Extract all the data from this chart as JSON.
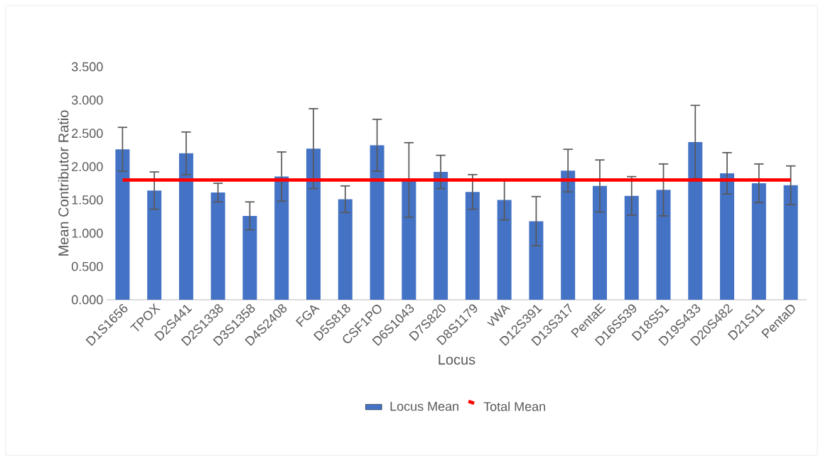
{
  "chart_data": {
    "type": "bar",
    "xlabel": "Locus",
    "ylabel": "Mean Contributor Ratio",
    "categories": [
      "D1S1656",
      "TPOX",
      "D2S441",
      "D2S1338",
      "D3S1358",
      "D4S2408",
      "FGA",
      "D5S818",
      "CSF1PO",
      "D6S1043",
      "D7S820",
      "D8S1179",
      "vWA",
      "D12S391",
      "D13S317",
      "PentaE",
      "D16S539",
      "D18S51",
      "D19S433",
      "D20S482",
      "D21S11",
      "PentaD"
    ],
    "series": [
      {
        "name": "Locus Mean",
        "type": "bar",
        "color": "#4472c4",
        "values": [
          2.26,
          1.64,
          2.2,
          1.61,
          1.26,
          1.85,
          2.27,
          1.51,
          2.32,
          1.8,
          1.92,
          1.62,
          1.5,
          1.18,
          1.94,
          1.71,
          1.56,
          1.65,
          2.37,
          1.9,
          1.75,
          1.72
        ],
        "errors": [
          0.33,
          0.28,
          0.32,
          0.14,
          0.21,
          0.37,
          0.6,
          0.2,
          0.39,
          0.56,
          0.25,
          0.26,
          0.3,
          0.37,
          0.32,
          0.39,
          0.29,
          0.39,
          0.55,
          0.31,
          0.29,
          0.29
        ]
      },
      {
        "name": "Total Mean",
        "type": "line",
        "color": "#ff0000",
        "line_style": "solid",
        "values": [
          1.8,
          1.8,
          1.8,
          1.8,
          1.8,
          1.8,
          1.8,
          1.8,
          1.8,
          1.8,
          1.8,
          1.8,
          1.8,
          1.8,
          1.8,
          1.8,
          1.8,
          1.8,
          1.8,
          1.8,
          1.8,
          1.8
        ]
      }
    ],
    "ylim": [
      0,
      3.5
    ],
    "yticks": [
      {
        "value": 0,
        "label": "0.000"
      },
      {
        "value": 0.5,
        "label": "0.500"
      },
      {
        "value": 1,
        "label": "1.000"
      },
      {
        "value": 1.5,
        "label": "1.500"
      },
      {
        "value": 2,
        "label": "2.000"
      },
      {
        "value": 2.5,
        "label": "2.500"
      },
      {
        "value": 3,
        "label": "3.000"
      },
      {
        "value": 3.5,
        "label": "3.500"
      }
    ],
    "grid": false,
    "legend": "bottom",
    "marker": "none"
  }
}
